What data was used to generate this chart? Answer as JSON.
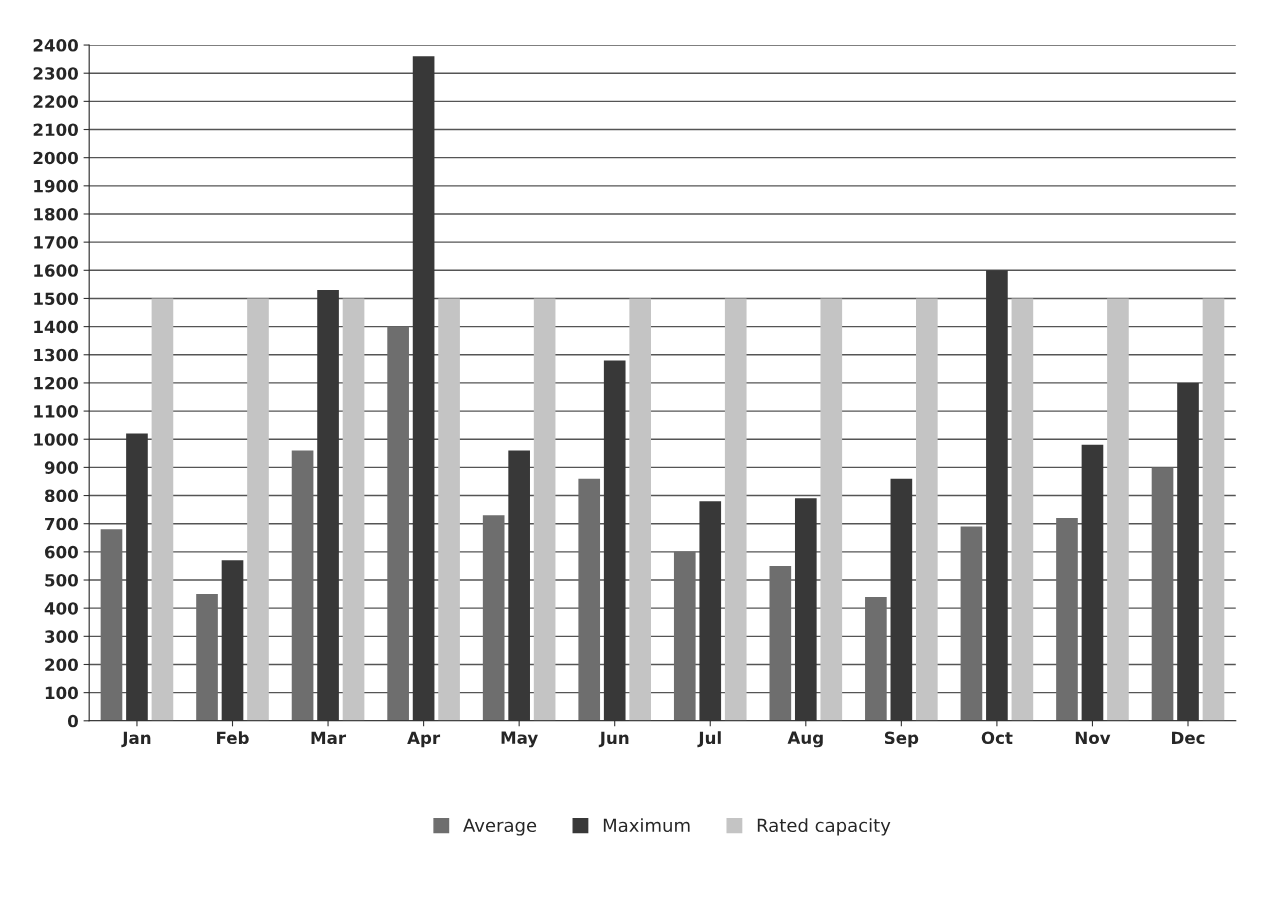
{
  "chart_data": {
    "type": "bar",
    "categories": [
      "Jan",
      "Feb",
      "Mar",
      "Apr",
      "May",
      "Jun",
      "Jul",
      "Aug",
      "Sep",
      "Oct",
      "Nov",
      "Dec"
    ],
    "series": [
      {
        "name": "Average",
        "color": "#6e6e6e",
        "values": [
          680,
          450,
          960,
          1400,
          730,
          860,
          600,
          550,
          440,
          690,
          720,
          900
        ]
      },
      {
        "name": "Maximum",
        "color": "#383838",
        "values": [
          1020,
          570,
          1530,
          2360,
          960,
          1280,
          780,
          790,
          860,
          1600,
          980,
          1200
        ]
      },
      {
        "name": "Rated capacity",
        "color": "#c4c4c4",
        "values": [
          1500,
          1500,
          1500,
          1500,
          1500,
          1500,
          1500,
          1500,
          1500,
          1500,
          1500,
          1500
        ]
      }
    ],
    "ylim": [
      0,
      2400
    ],
    "yticks": [
      0,
      100,
      200,
      300,
      400,
      500,
      600,
      700,
      800,
      900,
      1000,
      1100,
      1200,
      1300,
      1400,
      1500,
      1600,
      1700,
      1800,
      1900,
      2000,
      2100,
      2200,
      2300,
      2400
    ],
    "grid": "y",
    "legend": "bottom"
  }
}
